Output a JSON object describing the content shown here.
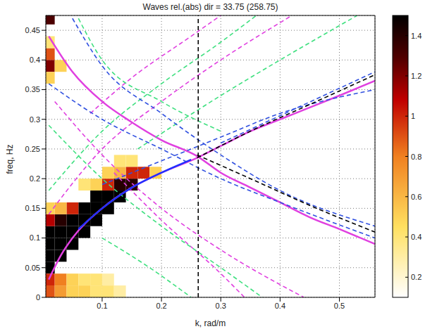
{
  "chart_data": {
    "type": "line",
    "title": "Waves rel.(abs) dir = 33.75 (258.75)",
    "x_label": "k, rad/m",
    "y_label": "freq, Hz",
    "xlim": [
      0.005,
      0.56
    ],
    "ylim": [
      0,
      0.475
    ],
    "xticks": [
      0.1,
      0.2,
      0.3,
      0.4,
      0.5
    ],
    "yticks": [
      0,
      0.05,
      0.1,
      0.15,
      0.2,
      0.25,
      0.3,
      0.35,
      0.4,
      0.45
    ],
    "grid": true,
    "colorbar": {
      "range": [
        0.1,
        1.5
      ],
      "ticks": [
        0.2,
        0.4,
        0.6,
        0.8,
        1,
        1.2,
        1.4
      ]
    },
    "cell_size": {
      "k": 0.02,
      "freq": 0.02
    },
    "cells": [
      {
        "k": 0.03,
        "freq": 0.07,
        "value": 1.5
      },
      {
        "k": 0.03,
        "freq": 0.09,
        "value": 1.5
      },
      {
        "k": 0.05,
        "freq": 0.09,
        "value": 1.5
      },
      {
        "k": 0.05,
        "freq": 0.11,
        "value": 1.5
      },
      {
        "k": 0.07,
        "freq": 0.11,
        "value": 1.5
      },
      {
        "k": 0.07,
        "freq": 0.13,
        "value": 1.5
      },
      {
        "k": 0.09,
        "freq": 0.13,
        "value": 1.5
      },
      {
        "k": 0.09,
        "freq": 0.15,
        "value": 1.5
      },
      {
        "k": 0.11,
        "freq": 0.15,
        "value": 1.5
      },
      {
        "k": 0.11,
        "freq": 0.17,
        "value": 1.5
      },
      {
        "k": 0.13,
        "freq": 0.17,
        "value": 1.5
      },
      {
        "k": 0.03,
        "freq": 0.11,
        "value": 1.5
      },
      {
        "k": 0.05,
        "freq": 0.13,
        "value": 1.5
      },
      {
        "k": 0.07,
        "freq": 0.15,
        "value": 1.5
      },
      {
        "k": 0.09,
        "freq": 0.17,
        "value": 1.5
      },
      {
        "k": 0.13,
        "freq": 0.19,
        "value": 1.4
      },
      {
        "k": 0.15,
        "freq": 0.19,
        "value": 1.4
      },
      {
        "k": 0.01,
        "freq": 0.05,
        "value": 1.5
      },
      {
        "k": 0.01,
        "freq": 0.07,
        "value": 1.5
      },
      {
        "k": 0.01,
        "freq": 0.09,
        "value": 1.5
      },
      {
        "k": 0.01,
        "freq": 0.11,
        "value": 1.5
      },
      {
        "k": 0.03,
        "freq": 0.13,
        "value": 1.4
      },
      {
        "k": 0.15,
        "freq": 0.21,
        "value": 1.0
      },
      {
        "k": 0.11,
        "freq": 0.19,
        "value": 1.0
      },
      {
        "k": 0.17,
        "freq": 0.21,
        "value": 1.0
      },
      {
        "k": 0.05,
        "freq": 0.15,
        "value": 1.0
      },
      {
        "k": 0.01,
        "freq": 0.13,
        "value": 1.1
      },
      {
        "k": 0.09,
        "freq": 0.19,
        "value": 0.5
      },
      {
        "k": 0.11,
        "freq": 0.21,
        "value": 0.5
      },
      {
        "k": 0.13,
        "freq": 0.21,
        "value": 0.6
      },
      {
        "k": 0.15,
        "freq": 0.23,
        "value": 0.4
      },
      {
        "k": 0.07,
        "freq": 0.19,
        "value": 0.4
      },
      {
        "k": 0.03,
        "freq": 0.15,
        "value": 0.6
      },
      {
        "k": 0.01,
        "freq": 0.15,
        "value": 0.5
      },
      {
        "k": 0.19,
        "freq": 0.21,
        "value": 0.5
      },
      {
        "k": 0.13,
        "freq": 0.23,
        "value": 0.4
      },
      {
        "k": 0.01,
        "freq": 0.01,
        "value": 0.9
      },
      {
        "k": 0.03,
        "freq": 0.01,
        "value": 0.7
      },
      {
        "k": 0.05,
        "freq": 0.01,
        "value": 0.5
      },
      {
        "k": 0.07,
        "freq": 0.01,
        "value": 0.5
      },
      {
        "k": 0.09,
        "freq": 0.01,
        "value": 0.4
      },
      {
        "k": 0.11,
        "freq": 0.01,
        "value": 0.4
      },
      {
        "k": 0.13,
        "freq": 0.01,
        "value": 0.3
      },
      {
        "k": 0.01,
        "freq": 0.03,
        "value": 1.0
      },
      {
        "k": 0.03,
        "freq": 0.03,
        "value": 0.8
      },
      {
        "k": 0.05,
        "freq": 0.03,
        "value": 0.5
      },
      {
        "k": 0.07,
        "freq": 0.03,
        "value": 0.4
      },
      {
        "k": 0.09,
        "freq": 0.03,
        "value": 0.4
      },
      {
        "k": 0.11,
        "freq": 0.03,
        "value": 0.3
      },
      {
        "k": 0.01,
        "freq": 0.39,
        "value": 1.2
      },
      {
        "k": 0.01,
        "freq": 0.41,
        "value": 0.9
      },
      {
        "k": 0.03,
        "freq": 0.39,
        "value": 0.5
      },
      {
        "k": 0.01,
        "freq": 0.37,
        "value": 0.5
      },
      {
        "k": 0.01,
        "freq": 0.43,
        "value": 0.4
      },
      {
        "k": 0.01,
        "freq": 0.47,
        "value": 1.3
      }
    ],
    "series": [
      {
        "color": "#e040e0",
        "line_style": "solid",
        "x": [
          0.01,
          0.05,
          0.1,
          0.15,
          0.2,
          0.26,
          0.3,
          0.35,
          0.4,
          0.45,
          0.5,
          0.56
        ],
        "values": [
          0.44,
          0.38,
          0.33,
          0.295,
          0.265,
          0.238,
          0.21,
          0.185,
          0.16,
          0.135,
          0.115,
          0.09
        ]
      },
      {
        "color": "#e040e0",
        "line_style": "solid",
        "x": [
          0.01,
          0.03,
          0.05,
          0.1,
          0.15,
          0.2,
          0.26,
          0.3,
          0.35,
          0.4,
          0.45,
          0.5,
          0.56
        ],
        "values": [
          0.03,
          0.07,
          0.1,
          0.15,
          0.185,
          0.21,
          0.235,
          0.255,
          0.28,
          0.3,
          0.32,
          0.34,
          0.365
        ]
      },
      {
        "color": "#e040e0",
        "line_style": "dashed",
        "x": [
          0.01,
          0.1,
          0.2,
          0.3,
          0.42
        ],
        "values": [
          0.14,
          0.25,
          0.33,
          0.4,
          0.475
        ]
      },
      {
        "color": "#e040e0",
        "line_style": "dashed",
        "x": [
          0.08,
          0.15,
          0.25,
          0.3
        ],
        "values": [
          0.31,
          0.37,
          0.44,
          0.475
        ]
      },
      {
        "color": "#e040e0",
        "line_style": "dashed",
        "x": [
          0.02,
          0.1,
          0.2,
          0.3,
          0.44
        ],
        "values": [
          0.33,
          0.24,
          0.15,
          0.08,
          0
        ]
      },
      {
        "color": "#e040e0",
        "line_style": "dashed",
        "x": [
          0.12,
          0.2,
          0.3,
          0.34
        ],
        "values": [
          0.21,
          0.13,
          0.04,
          0
        ]
      },
      {
        "color": "#40e080",
        "line_style": "dashed",
        "x": [
          0.01,
          0.1,
          0.2,
          0.3,
          0.36
        ],
        "values": [
          0.18,
          0.28,
          0.36,
          0.43,
          0.475
        ]
      },
      {
        "color": "#40e080",
        "line_style": "dashed",
        "x": [
          0.16,
          0.3,
          0.4,
          0.53
        ],
        "values": [
          0.25,
          0.34,
          0.4,
          0.475
        ]
      },
      {
        "color": "#40e080",
        "line_style": "dashed",
        "x": [
          0.01,
          0.1,
          0.2,
          0.3,
          0.37
        ],
        "values": [
          0.29,
          0.2,
          0.12,
          0.05,
          0
        ]
      },
      {
        "color": "#40e080",
        "line_style": "dashed",
        "x": [
          0.1,
          0.18,
          0.25
        ],
        "values": [
          0.1,
          0.05,
          0
        ]
      },
      {
        "color": "#40e080",
        "line_style": "dashed",
        "x": [
          0.06,
          0.1,
          0.2,
          0.3
        ],
        "values": [
          0.47,
          0.4,
          0.33,
          0.28
        ]
      },
      {
        "color": "#3050e0",
        "line_style": "dashed",
        "x": [
          0.05,
          0.1,
          0.2,
          0.3,
          0.4,
          0.56
        ],
        "values": [
          0.47,
          0.39,
          0.31,
          0.24,
          0.18,
          0.12
        ]
      },
      {
        "color": "#3050e0",
        "line_style": "dashed",
        "x": [
          0.01,
          0.1,
          0.2,
          0.3,
          0.4,
          0.56
        ],
        "values": [
          0.36,
          0.3,
          0.25,
          0.2,
          0.16,
          0.1
        ]
      },
      {
        "color": "#3050e0",
        "line_style": "dashed",
        "x": [
          0.1,
          0.2,
          0.3,
          0.4,
          0.56
        ],
        "values": [
          0.19,
          0.23,
          0.27,
          0.31,
          0.35
        ]
      },
      {
        "color": "#3050e0",
        "line_style": "dashed",
        "x": [
          0.3,
          0.56
        ],
        "values": [
          0.26,
          0.38
        ]
      },
      {
        "color": "#000000",
        "line_style": "dashed",
        "x": [
          0.26,
          0.35,
          0.45,
          0.56
        ],
        "values": [
          0.235,
          0.28,
          0.325,
          0.375
        ]
      },
      {
        "color": "#000000",
        "line_style": "dashed",
        "x": [
          0.26,
          0.35,
          0.45,
          0.56
        ],
        "values": [
          0.24,
          0.2,
          0.155,
          0.11
        ]
      },
      {
        "color": "#000000",
        "line_style": "dashed",
        "x": [
          0.262,
          0.262
        ],
        "values": [
          0,
          0.475
        ]
      },
      {
        "color": "#2030ff",
        "line_style": "solid",
        "x": [
          0.06,
          0.1,
          0.15,
          0.2,
          0.25
        ],
        "values": [
          0.115,
          0.15,
          0.185,
          0.21,
          0.232
        ]
      }
    ]
  }
}
